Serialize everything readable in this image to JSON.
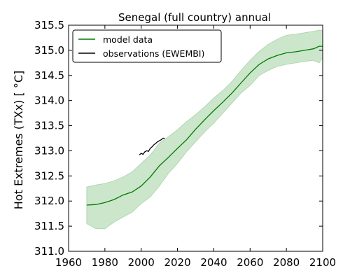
{
  "chart_data": {
    "type": "line",
    "title": "Senegal (full country) annual",
    "xlabel": "",
    "ylabel": "Hot Extremes (TXx) [ °C]",
    "xlim": [
      1960,
      2100
    ],
    "ylim": [
      311.0,
      315.5
    ],
    "xticks": [
      "1960",
      "1980",
      "2000",
      "2020",
      "2040",
      "2060",
      "2080",
      "2100"
    ],
    "yticks": [
      "311.0",
      "311.5",
      "312.0",
      "312.5",
      "313.0",
      "313.5",
      "314.0",
      "314.5",
      "315.0",
      "315.5"
    ],
    "grid": false,
    "legend_position": "top-left",
    "colors": {
      "model": "#007a00",
      "band": "#cce6cc",
      "band_edge": "#a9d3a9",
      "observations": "#000000"
    },
    "series": [
      {
        "name": "model data",
        "x": [
          1970,
          1975,
          1980,
          1985,
          1990,
          1995,
          2000,
          2005,
          2010,
          2015,
          2020,
          2025,
          2030,
          2035,
          2040,
          2045,
          2050,
          2055,
          2060,
          2065,
          2070,
          2075,
          2080,
          2085,
          2090,
          2095,
          2098,
          2100
        ],
        "values": [
          311.92,
          311.93,
          311.97,
          312.03,
          312.12,
          312.18,
          312.3,
          312.48,
          312.7,
          312.87,
          313.05,
          313.22,
          313.43,
          313.62,
          313.8,
          313.97,
          314.15,
          314.35,
          314.55,
          314.72,
          314.83,
          314.9,
          314.95,
          314.97,
          315.0,
          315.03,
          315.08,
          315.08
        ],
        "lower": [
          311.55,
          311.45,
          311.45,
          311.58,
          311.68,
          311.78,
          311.95,
          312.08,
          312.3,
          312.55,
          312.75,
          312.98,
          313.18,
          313.38,
          313.55,
          313.75,
          313.95,
          314.15,
          314.3,
          314.5,
          314.6,
          314.68,
          314.72,
          314.75,
          314.78,
          314.8,
          314.75,
          314.85
        ],
        "upper": [
          312.28,
          312.32,
          312.35,
          312.4,
          312.48,
          312.58,
          312.75,
          312.92,
          313.15,
          313.28,
          313.42,
          313.58,
          313.72,
          313.88,
          314.05,
          314.2,
          314.38,
          314.6,
          314.8,
          314.98,
          315.12,
          315.22,
          315.3,
          315.32,
          315.35,
          315.38,
          315.4,
          315.4
        ]
      },
      {
        "name": "observations (EWEMBI)",
        "x": [
          1999,
          2000,
          2001,
          2002,
          2003,
          2004,
          2005,
          2006,
          2007,
          2008,
          2009,
          2010,
          2011,
          2012,
          2013
        ],
        "values": [
          312.92,
          312.95,
          312.93,
          312.98,
          313.0,
          312.99,
          313.05,
          313.08,
          313.12,
          313.15,
          313.18,
          313.2,
          313.22,
          313.25,
          313.25
        ]
      }
    ]
  }
}
